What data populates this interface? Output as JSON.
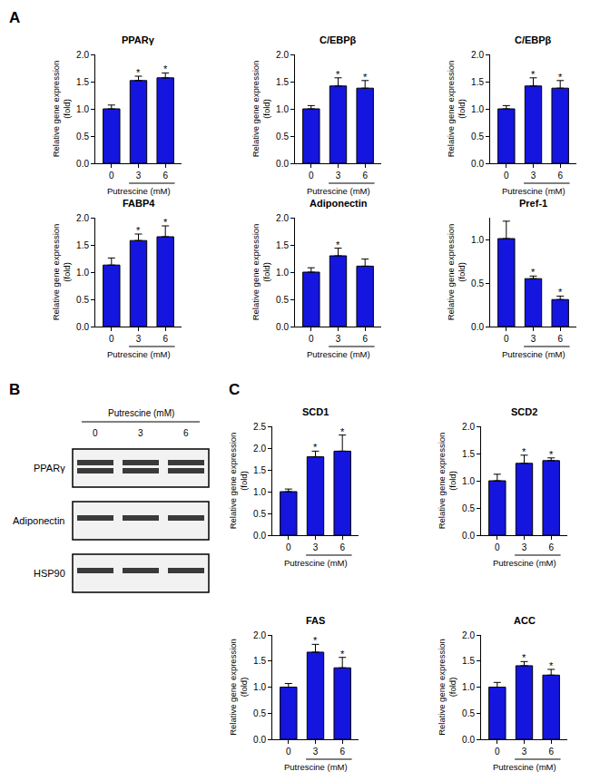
{
  "chart_data": [
    {
      "type": "bar",
      "title": "PPARγ",
      "categories": [
        "0",
        "3",
        "6"
      ],
      "values": [
        1.0,
        1.52,
        1.57
      ],
      "error": [
        0.07,
        0.08,
        0.09
      ],
      "significance": [
        null,
        "*",
        "*"
      ],
      "color": "#1515e0",
      "x_label": "Putrescine (mM)",
      "y_label": "Relative gene expression\n(fold)",
      "ylim": [
        0,
        2
      ],
      "yticks": [
        {
          "value": 0,
          "label": "0.0"
        },
        0.5,
        {
          "value": 1,
          "label": "1.0"
        },
        1.5,
        {
          "value": 2,
          "label": "2.0"
        }
      ]
    },
    {
      "type": "bar",
      "title": "C/EBPβ",
      "categories": [
        "0",
        "3",
        "6"
      ],
      "values": [
        1.0,
        1.42,
        1.38
      ],
      "error": [
        0.06,
        0.15,
        0.14
      ],
      "significance": [
        null,
        "*",
        "*"
      ],
      "color": "#1515e0",
      "x_label": "Putrescine (mM)",
      "y_label": "Relative gene expression\n(fold)",
      "ylim": [
        0,
        2
      ],
      "yticks": [
        {
          "value": 0,
          "label": "0.0"
        },
        0.5,
        {
          "value": 1,
          "label": "1.0"
        },
        1.5,
        {
          "value": 2,
          "label": "2.0"
        }
      ]
    },
    {
      "type": "bar",
      "title": "C/EBPβ",
      "categories": [
        "0",
        "3",
        "6"
      ],
      "values": [
        1.0,
        1.42,
        1.38
      ],
      "error": [
        0.06,
        0.15,
        0.14
      ],
      "significance": [
        null,
        "*",
        "*"
      ],
      "color": "#1515e0",
      "x_label": "Putrescine (mM)",
      "y_label": "Relative gene expression\n(fold)",
      "ylim": [
        0,
        2
      ],
      "yticks": [
        {
          "value": 0,
          "label": "0.0"
        },
        0.5,
        {
          "value": 1,
          "label": "1.0"
        },
        1.5,
        {
          "value": 2,
          "label": "2.0"
        }
      ]
    },
    {
      "type": "bar",
      "title": "FABP4",
      "categories": [
        "0",
        "3",
        "6"
      ],
      "values": [
        1.13,
        1.58,
        1.65
      ],
      "error": [
        0.13,
        0.12,
        0.2
      ],
      "significance": [
        null,
        "*",
        "*"
      ],
      "color": "#1515e0",
      "x_label": "Putrescine (mM)",
      "y_label": "Relative gene expression\n(fold)",
      "ylim": [
        0,
        2
      ],
      "yticks": [
        {
          "value": 0,
          "label": "0.0"
        },
        0.5,
        {
          "value": 1,
          "label": "1.0"
        },
        1.5,
        {
          "value": 2,
          "label": "2.0"
        }
      ]
    },
    {
      "type": "bar",
      "title": "Adiponectin",
      "categories": [
        "0",
        "3",
        "6"
      ],
      "values": [
        1.0,
        1.3,
        1.11
      ],
      "error": [
        0.08,
        0.14,
        0.13
      ],
      "significance": [
        null,
        "*",
        null
      ],
      "color": "#1515e0",
      "x_label": "Putrescine (mM)",
      "y_label": "Relative gene expression\n(fold)",
      "ylim": [
        0,
        2
      ],
      "yticks": [
        {
          "value": 0,
          "label": "0.0"
        },
        0.5,
        {
          "value": 1,
          "label": "1.0"
        },
        1.5,
        {
          "value": 2,
          "label": "2.0"
        }
      ]
    },
    {
      "type": "bar",
      "title": "Pref-1",
      "categories": [
        "0",
        "3",
        "6"
      ],
      "values": [
        1.01,
        0.55,
        0.31
      ],
      "error": [
        0.2,
        0.03,
        0.04
      ],
      "significance": [
        null,
        "*",
        "*"
      ],
      "color": "#1515e0",
      "x_label": "Putrescine (mM)",
      "y_label": "Relative gene expression\n(fold)",
      "ylim": [
        0,
        1.25
      ],
      "yticks": [
        {
          "value": 0,
          "label": "0.0"
        },
        0.5,
        {
          "value": 1,
          "label": "1.0"
        }
      ]
    },
    {
      "type": "bar",
      "title": "SCD1",
      "categories": [
        "0",
        "3",
        "6"
      ],
      "values": [
        1.0,
        1.8,
        1.93
      ],
      "error": [
        0.06,
        0.13,
        0.37
      ],
      "significance": [
        null,
        "*",
        "*"
      ],
      "color": "#1515e0",
      "x_label": "Putrescine (mM)",
      "y_label": "Relative gene expression\n(fold)",
      "ylim": [
        0,
        2.5
      ],
      "yticks": [
        {
          "value": 0,
          "label": "0.0"
        },
        0.5,
        {
          "value": 1,
          "label": "1.0"
        },
        1.5,
        {
          "value": 2,
          "label": "2.0"
        },
        2.5
      ]
    },
    {
      "type": "bar",
      "title": "SCD2",
      "categories": [
        "0",
        "3",
        "6"
      ],
      "values": [
        1.0,
        1.32,
        1.37
      ],
      "error": [
        0.12,
        0.15,
        0.05
      ],
      "significance": [
        null,
        "*",
        "*"
      ],
      "color": "#1515e0",
      "x_label": "Putrescine (mM)",
      "y_label": "Relative gene expression\n(fold)",
      "ylim": [
        0,
        2
      ],
      "yticks": [
        {
          "value": 0,
          "label": "0.0"
        },
        0.5,
        {
          "value": 1,
          "label": "1.0"
        },
        1.5,
        {
          "value": 2,
          "label": "2.0"
        }
      ]
    },
    {
      "type": "bar",
      "title": "FAS",
      "categories": [
        "0",
        "3",
        "6"
      ],
      "values": [
        1.0,
        1.67,
        1.37
      ],
      "error": [
        0.07,
        0.15,
        0.2
      ],
      "significance": [
        null,
        "*",
        "*"
      ],
      "color": "#1515e0",
      "x_label": "Putrescine (mM)",
      "y_label": "Relative gene expression\n(fold)",
      "ylim": [
        0,
        2
      ],
      "yticks": [
        {
          "value": 0,
          "label": "0.0"
        },
        0.5,
        {
          "value": 1,
          "label": "1.0"
        },
        1.5,
        {
          "value": 2,
          "label": "2.0"
        }
      ]
    },
    {
      "type": "bar",
      "title": "ACC",
      "categories": [
        "0",
        "3",
        "6"
      ],
      "values": [
        1.0,
        1.41,
        1.23
      ],
      "error": [
        0.09,
        0.08,
        0.11
      ],
      "significance": [
        null,
        "*",
        "*"
      ],
      "color": "#1515e0",
      "x_label": "Putrescine (mM)",
      "y_label": "Relative gene expression\n(fold)",
      "ylim": [
        0,
        2
      ],
      "yticks": [
        {
          "value": 0,
          "label": "0.0"
        },
        0.5,
        {
          "value": 1,
          "label": "1.0"
        },
        1.5,
        {
          "value": 2,
          "label": "2.0"
        }
      ]
    }
  ],
  "panel_labels": [
    "A",
    "B",
    "C"
  ],
  "blot": {
    "x_label": "Putrescine (mM)",
    "lanes": [
      "0",
      "3",
      "6"
    ],
    "rows": [
      "PPARγ",
      "Adiponectin",
      "HSP90"
    ]
  }
}
